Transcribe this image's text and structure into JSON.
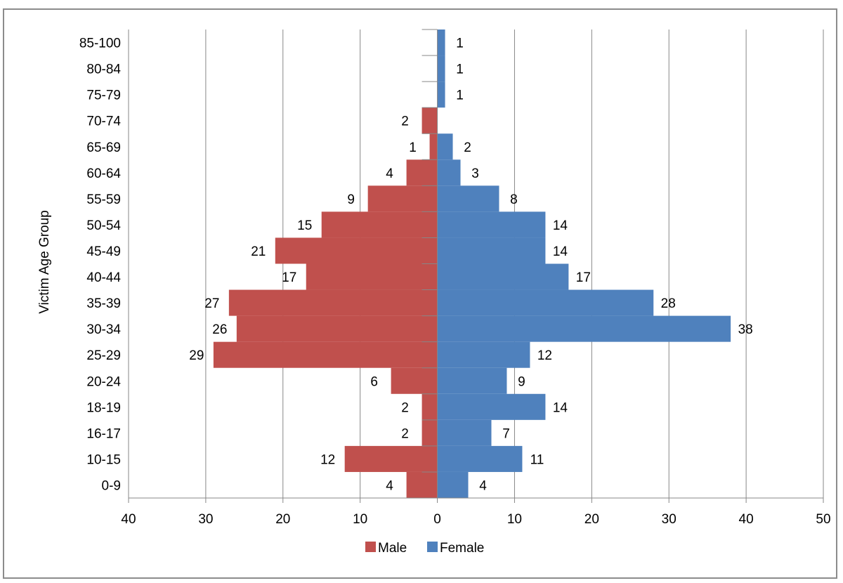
{
  "chart_data": {
    "type": "bar",
    "orientation": "horizontal",
    "subtype": "population-pyramid",
    "ylabel": "Victim Age Group",
    "categories": [
      "0-9",
      "10-15",
      "16-17",
      "18-19",
      "20-24",
      "25-29",
      "30-34",
      "35-39",
      "40-44",
      "45-49",
      "50-54",
      "55-59",
      "60-64",
      "65-69",
      "70-74",
      "75-79",
      "80-84",
      "85-100"
    ],
    "series": [
      {
        "name": "Male",
        "color": "#c0504d",
        "direction": "left",
        "values": [
          4,
          12,
          2,
          2,
          6,
          29,
          26,
          27,
          17,
          21,
          15,
          9,
          4,
          1,
          2,
          null,
          null,
          null
        ]
      },
      {
        "name": "Female",
        "color": "#4f81bd",
        "direction": "right",
        "values": [
          4,
          11,
          7,
          14,
          9,
          12,
          38,
          28,
          17,
          14,
          14,
          8,
          3,
          2,
          null,
          1,
          1,
          1
        ]
      }
    ],
    "xlim": [
      -40,
      50
    ],
    "xticks": [
      -40,
      -30,
      -20,
      -10,
      0,
      10,
      20,
      30,
      40,
      50
    ],
    "xtick_labels": [
      "40",
      "30",
      "20",
      "10",
      "0",
      "10",
      "20",
      "30",
      "40",
      "50"
    ],
    "grid": "vertical",
    "legend": "bottom-center"
  }
}
